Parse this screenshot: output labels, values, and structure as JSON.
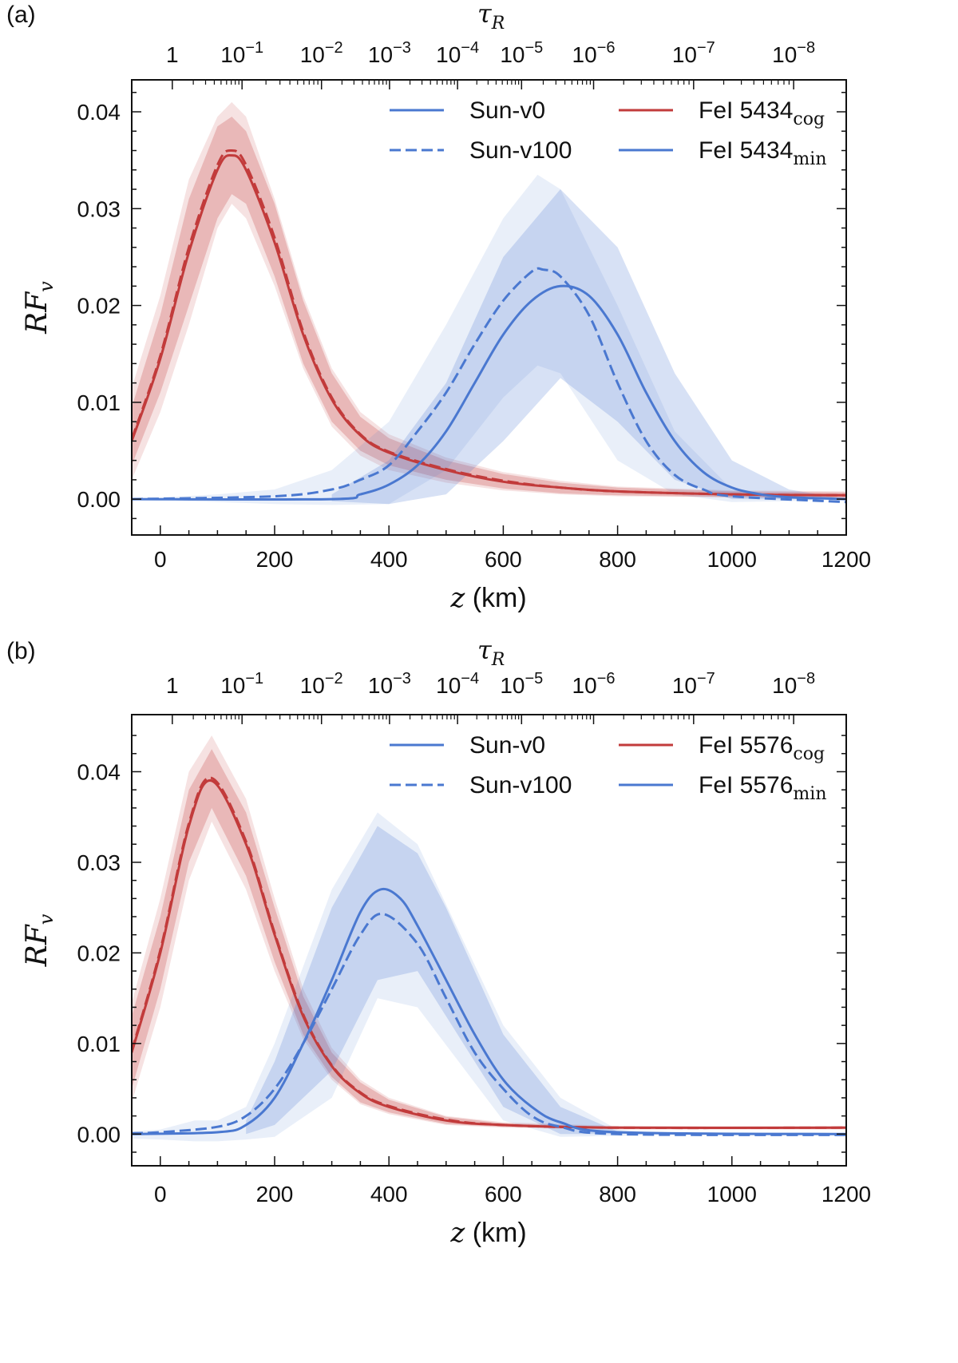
{
  "chart_data": [
    {
      "type": "line",
      "panel_label": "(a)",
      "xlabel_var": "z",
      "xlabel_unit": " (km)",
      "ylabel": "RF",
      "ylabel_sub": "v",
      "top_axis_label": "τ",
      "top_axis_label_sub": "R",
      "xlim": [
        -50,
        1200
      ],
      "ylim": [
        -0.0037,
        0.0433
      ],
      "x_ticks": [
        0,
        200,
        400,
        600,
        800,
        1000,
        1200
      ],
      "y_ticks": [
        "0.00",
        "0.01",
        "0.02",
        "0.03",
        "0.04"
      ],
      "top_ticks": [
        {
          "z": 21,
          "base": "1",
          "exp": ""
        },
        {
          "z": 143,
          "base": "10",
          "exp": "−1"
        },
        {
          "z": 282,
          "base": "10",
          "exp": "−2"
        },
        {
          "z": 401,
          "base": "10",
          "exp": "−3"
        },
        {
          "z": 520,
          "base": "10",
          "exp": "−4"
        },
        {
          "z": 632,
          "base": "10",
          "exp": "−5"
        },
        {
          "z": 758,
          "base": "10",
          "exp": "−6"
        },
        {
          "z": 933,
          "base": "10",
          "exp": "−7"
        },
        {
          "z": 1108,
          "base": "10",
          "exp": "−8"
        }
      ],
      "legend": {
        "placement": "top-right",
        "entries": [
          {
            "label": "Sun-v0",
            "sub": "",
            "style": "solid",
            "color": "#4a78d0"
          },
          {
            "label": "FeI 5434",
            "sub": "cog",
            "style": "solid",
            "color": "#c23b3b"
          },
          {
            "label": "Sun-v100",
            "sub": "",
            "style": "dashed",
            "color": "#4a78d0"
          },
          {
            "label": "FeI 5434",
            "sub": "min",
            "style": "solid",
            "color": "#4a78d0"
          }
        ]
      },
      "bands": [
        {
          "name": "cog-outer",
          "color": "#c23b3b",
          "opacity": 0.15,
          "x": [
            -50,
            0,
            50,
            100,
            125,
            150,
            200,
            250,
            300,
            350,
            400,
            500,
            600,
            700,
            800,
            1000,
            1200
          ],
          "upper": [
            0.0115,
            0.021,
            0.033,
            0.0395,
            0.041,
            0.0395,
            0.031,
            0.021,
            0.0135,
            0.009,
            0.0067,
            0.0043,
            0.0028,
            0.0019,
            0.0013,
            0.0009,
            0.0008
          ],
          "lower": [
            0.002,
            0.009,
            0.018,
            0.028,
            0.0305,
            0.029,
            0.022,
            0.0135,
            0.0075,
            0.0045,
            0.003,
            0.0017,
            0.0009,
            0.0005,
            0.0003,
            0.0002,
            0.0001
          ]
        },
        {
          "name": "cog-inner",
          "color": "#c23b3b",
          "opacity": 0.25,
          "x": [
            -50,
            0,
            50,
            100,
            125,
            150,
            200,
            250,
            300,
            350,
            400,
            500,
            600,
            700,
            800,
            1000,
            1200
          ],
          "upper": [
            0.0095,
            0.019,
            0.031,
            0.0385,
            0.0395,
            0.038,
            0.0305,
            0.0205,
            0.013,
            0.0085,
            0.0063,
            0.004,
            0.0026,
            0.0017,
            0.0012,
            0.0008,
            0.0007
          ],
          "lower": [
            0.0035,
            0.011,
            0.02,
            0.029,
            0.0315,
            0.0305,
            0.023,
            0.014,
            0.008,
            0.005,
            0.0035,
            0.002,
            0.0011,
            0.0006,
            0.0004,
            0.0002,
            0.0001
          ]
        },
        {
          "name": "min-outer",
          "color": "#4a78d0",
          "opacity": 0.12,
          "x": [
            -50,
            100,
            200,
            300,
            400,
            500,
            600,
            660,
            700,
            800,
            900,
            1000,
            1100,
            1200
          ],
          "upper": [
            0,
            0.0005,
            0.001,
            0.003,
            0.008,
            0.018,
            0.029,
            0.0335,
            0.032,
            0.02,
            0.007,
            0.001,
            0.0002,
            0
          ],
          "lower": [
            0,
            -0.0003,
            -0.0005,
            -0.0006,
            -0.0005,
            0.003,
            0.0105,
            0.0138,
            0.013,
            0.004,
            0.0005,
            -0.0003,
            -0.0002,
            0
          ]
        },
        {
          "name": "min-inner",
          "color": "#4a78d0",
          "opacity": 0.22,
          "x": [
            300,
            400,
            500,
            600,
            700,
            800,
            900,
            1000,
            1100,
            1200
          ],
          "upper": [
            0.0005,
            0.004,
            0.012,
            0.025,
            0.032,
            0.026,
            0.013,
            0.004,
            0.001,
            0
          ],
          "lower": [
            -0.0002,
            -0.0005,
            0.0005,
            0.006,
            0.0125,
            0.008,
            0.002,
            0,
            0,
            0
          ]
        }
      ],
      "series": [
        {
          "name": "FeI 5434 cog Sun-v0",
          "color": "#c23b3b",
          "style": "solid",
          "x": [
            -50,
            0,
            50,
            100,
            125,
            150,
            200,
            250,
            300,
            350,
            400,
            500,
            600,
            700,
            800,
            1000,
            1200
          ],
          "y": [
            0.006,
            0.0145,
            0.0255,
            0.034,
            0.0355,
            0.034,
            0.0265,
            0.017,
            0.0103,
            0.0066,
            0.0048,
            0.003,
            0.0018,
            0.0012,
            0.0008,
            0.0005,
            0.0004
          ]
        },
        {
          "name": "FeI 5434 cog Sun-v100",
          "color": "#c23b3b",
          "style": "dashed",
          "x": [
            -50,
            0,
            50,
            100,
            125,
            150,
            200,
            250,
            300,
            350,
            400,
            500,
            600,
            700,
            800,
            1000,
            1200
          ],
          "y": [
            0.0062,
            0.0148,
            0.026,
            0.0345,
            0.036,
            0.0345,
            0.027,
            0.0173,
            0.0105,
            0.0067,
            0.0049,
            0.0031,
            0.0019,
            0.0012,
            0.0008,
            0.0005,
            0.0004
          ]
        },
        {
          "name": "FeI 5434 min Sun-v0",
          "color": "#4a78d0",
          "style": "solid",
          "x": [
            -50,
            300,
            350,
            400,
            450,
            500,
            550,
            600,
            650,
            700,
            750,
            800,
            850,
            900,
            950,
            1000,
            1050,
            1100,
            1200
          ],
          "y": [
            0,
            0,
            0.0005,
            0.0015,
            0.0035,
            0.007,
            0.012,
            0.017,
            0.0205,
            0.022,
            0.021,
            0.017,
            0.011,
            0.006,
            0.0028,
            0.0012,
            0.0005,
            0.0002,
            0
          ]
        },
        {
          "name": "FeI 5434 min Sun-v100",
          "color": "#4a78d0",
          "style": "dashed",
          "x": [
            -50,
            200,
            300,
            350,
            400,
            450,
            500,
            550,
            600,
            650,
            670,
            700,
            750,
            800,
            850,
            900,
            950,
            1000,
            1200
          ],
          "y": [
            0,
            0.0003,
            0.001,
            0.002,
            0.0035,
            0.007,
            0.011,
            0.016,
            0.0205,
            0.0235,
            0.0237,
            0.023,
            0.019,
            0.012,
            0.006,
            0.0025,
            0.001,
            0.0003,
            -0.0003
          ]
        }
      ]
    },
    {
      "type": "line",
      "panel_label": "(b)",
      "xlabel_var": "z",
      "xlabel_unit": " (km)",
      "ylabel": "RF",
      "ylabel_sub": "v",
      "top_axis_label": "τ",
      "top_axis_label_sub": "R",
      "xlim": [
        -50,
        1200
      ],
      "ylim": [
        -0.0035,
        0.0463
      ],
      "x_ticks": [
        0,
        200,
        400,
        600,
        800,
        1000,
        1200
      ],
      "y_ticks": [
        "0.00",
        "0.01",
        "0.02",
        "0.03",
        "0.04"
      ],
      "top_ticks": [
        {
          "z": 21,
          "base": "1",
          "exp": ""
        },
        {
          "z": 143,
          "base": "10",
          "exp": "−1"
        },
        {
          "z": 282,
          "base": "10",
          "exp": "−2"
        },
        {
          "z": 401,
          "base": "10",
          "exp": "−3"
        },
        {
          "z": 520,
          "base": "10",
          "exp": "−4"
        },
        {
          "z": 632,
          "base": "10",
          "exp": "−5"
        },
        {
          "z": 758,
          "base": "10",
          "exp": "−6"
        },
        {
          "z": 933,
          "base": "10",
          "exp": "−7"
        },
        {
          "z": 1108,
          "base": "10",
          "exp": "−8"
        }
      ],
      "legend": {
        "placement": "top-right",
        "entries": [
          {
            "label": "Sun-v0",
            "sub": "",
            "style": "solid",
            "color": "#4a78d0"
          },
          {
            "label": "FeI 5576",
            "sub": "cog",
            "style": "solid",
            "color": "#c23b3b"
          },
          {
            "label": "Sun-v100",
            "sub": "",
            "style": "dashed",
            "color": "#4a78d0"
          },
          {
            "label": "FeI 5576",
            "sub": "min",
            "style": "solid",
            "color": "#4a78d0"
          }
        ]
      },
      "bands": [
        {
          "name": "cog-outer",
          "color": "#c23b3b",
          "opacity": 0.15,
          "x": [
            -50,
            0,
            50,
            90,
            150,
            200,
            250,
            300,
            350,
            400,
            500,
            600,
            800,
            1200
          ],
          "upper": [
            0.0145,
            0.026,
            0.04,
            0.044,
            0.037,
            0.026,
            0.016,
            0.0095,
            0.006,
            0.004,
            0.002,
            0.0013,
            0.0009,
            0.0009
          ],
          "lower": [
            0.0035,
            0.014,
            0.028,
            0.0345,
            0.027,
            0.018,
            0.0105,
            0.006,
            0.0033,
            0.0022,
            0.001,
            0.0007,
            0.0005,
            0.0005
          ]
        },
        {
          "name": "cog-inner",
          "color": "#c23b3b",
          "opacity": 0.25,
          "x": [
            -50,
            0,
            50,
            90,
            150,
            200,
            250,
            300,
            350,
            400,
            500,
            600,
            800,
            1200
          ],
          "upper": [
            0.013,
            0.024,
            0.038,
            0.0425,
            0.0355,
            0.025,
            0.0152,
            0.009,
            0.0057,
            0.0038,
            0.0019,
            0.0012,
            0.0008,
            0.0008
          ],
          "lower": [
            0.005,
            0.016,
            0.03,
            0.036,
            0.0285,
            0.019,
            0.011,
            0.0063,
            0.0035,
            0.0024,
            0.0011,
            0.0008,
            0.0006,
            0.0006
          ]
        },
        {
          "name": "min-outer",
          "color": "#4a78d0",
          "opacity": 0.12,
          "x": [
            -50,
            0,
            60,
            100,
            150,
            200,
            300,
            380,
            450,
            600,
            700,
            800,
            900,
            1200
          ],
          "upper": [
            0.0003,
            0.0005,
            0.0015,
            0.0015,
            0.003,
            0.01,
            0.027,
            0.0355,
            0.032,
            0.012,
            0.004,
            0.0005,
            0,
            0
          ],
          "lower": [
            -0.0005,
            -0.0006,
            -0.0008,
            -0.0008,
            -0.0006,
            -0.0003,
            0.004,
            0.015,
            0.014,
            0.0015,
            -0.0003,
            -0.0002,
            0,
            0
          ]
        },
        {
          "name": "min-inner",
          "color": "#4a78d0",
          "opacity": 0.22,
          "x": [
            150,
            200,
            300,
            380,
            450,
            500,
            600,
            700,
            800
          ],
          "upper": [
            0.0015,
            0.008,
            0.025,
            0.034,
            0.031,
            0.025,
            0.011,
            0.003,
            0.0003
          ],
          "lower": [
            0,
            0.001,
            0.007,
            0.017,
            0.018,
            0.013,
            0.003,
            0,
            0
          ]
        }
      ],
      "series": [
        {
          "name": "FeI 5576 cog Sun-v0",
          "color": "#c23b3b",
          "style": "solid",
          "x": [
            -50,
            0,
            50,
            90,
            150,
            200,
            250,
            300,
            350,
            400,
            500,
            600,
            800,
            1200
          ],
          "y": [
            0.009,
            0.02,
            0.034,
            0.039,
            0.032,
            0.022,
            0.013,
            0.0075,
            0.0045,
            0.003,
            0.0015,
            0.001,
            0.0007,
            0.0007
          ]
        },
        {
          "name": "FeI 5576 cog Sun-v100",
          "color": "#c23b3b",
          "style": "dashed",
          "x": [
            -50,
            0,
            50,
            90,
            150,
            200,
            250,
            300,
            350,
            400,
            500,
            600,
            800,
            1200
          ],
          "y": [
            0.0092,
            0.0203,
            0.0343,
            0.0393,
            0.0323,
            0.0222,
            0.0132,
            0.0076,
            0.0046,
            0.0031,
            0.0016,
            0.001,
            0.0007,
            0.0007
          ]
        },
        {
          "name": "FeI 5576 min Sun-v0",
          "color": "#4a78d0",
          "style": "solid",
          "x": [
            -50,
            100,
            150,
            200,
            250,
            300,
            350,
            385,
            420,
            450,
            500,
            550,
            600,
            650,
            700,
            800,
            1200
          ],
          "y": [
            0,
            0.0002,
            0.001,
            0.004,
            0.01,
            0.017,
            0.0245,
            0.027,
            0.026,
            0.023,
            0.017,
            0.011,
            0.006,
            0.003,
            0.0013,
            0.0002,
            0
          ]
        },
        {
          "name": "FeI 5576 min Sun-v100",
          "color": "#4a78d0",
          "style": "dashed",
          "x": [
            -50,
            0,
            100,
            150,
            200,
            250,
            300,
            350,
            390,
            450,
            500,
            550,
            600,
            650,
            700,
            800,
            1200
          ],
          "y": [
            0.0001,
            0.0002,
            0.0008,
            0.002,
            0.005,
            0.01,
            0.016,
            0.022,
            0.0243,
            0.021,
            0.015,
            0.009,
            0.005,
            0.002,
            0.0008,
            0,
            -0.0001
          ]
        }
      ]
    }
  ]
}
